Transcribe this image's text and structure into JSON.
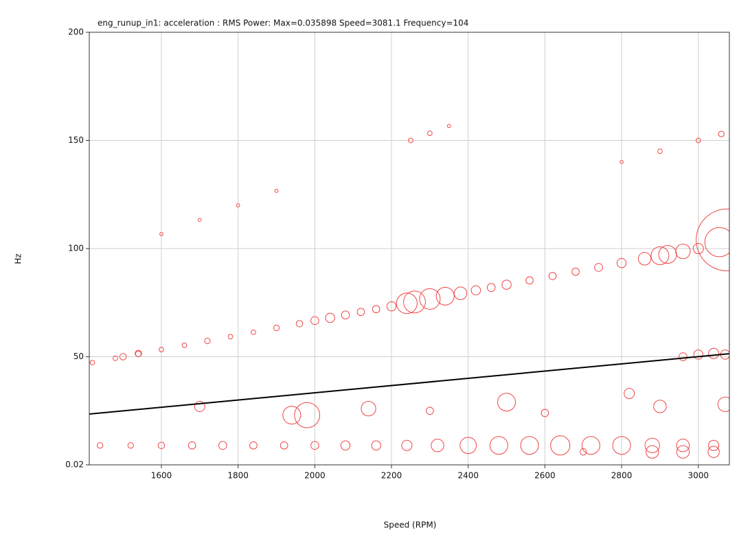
{
  "chart_data": {
    "type": "scatter",
    "title": "eng_runup_in1: acceleration : RMS Power: Max=0.035898  Speed=3081.1  Frequency=104",
    "xlabel": "Speed (RPM)",
    "ylabel": "Hz",
    "xlim": [
      1412,
      3081
    ],
    "xticks": [
      1600,
      1800,
      2000,
      2200,
      2400,
      2600,
      2800,
      3000
    ],
    "ylim": [
      0.02,
      200
    ],
    "yticks": [
      0.02,
      50,
      100,
      150,
      200
    ],
    "grid": true,
    "series": [
      {
        "mode": "bubble",
        "color": "#f04545",
        "x": [
          1420,
          1480,
          1540,
          1600,
          1660,
          1720,
          1780,
          1840,
          1900,
          1960,
          2000,
          2040,
          2080,
          2120,
          2160,
          2200,
          2240,
          2260,
          2300,
          2340,
          2380,
          2420,
          2460,
          2500,
          2560,
          2620,
          2680,
          2740,
          2800,
          2860,
          2900,
          2920,
          2960,
          3000,
          3075,
          3055,
          2960,
          3000,
          3040,
          3070,
          1500,
          1540,
          1700,
          1980,
          1940,
          2140,
          2500,
          2820,
          2900,
          3070,
          2600,
          2300,
          1440,
          1520,
          1600,
          1680,
          1760,
          1840,
          1920,
          2000,
          2080,
          2160,
          2240,
          2320,
          2400,
          2480,
          2560,
          2640,
          2720,
          2800,
          2880,
          2960,
          3040,
          2880,
          2960,
          3040,
          2700,
          1600,
          1700,
          1800,
          1900,
          2250,
          2300,
          2350,
          2800,
          2900,
          3000,
          3060
        ],
        "y": [
          47.3,
          49.3,
          51.3,
          53.3,
          55.3,
          57.3,
          59.3,
          61.3,
          63.3,
          65.3,
          66.7,
          68,
          69.3,
          70.7,
          72,
          73.3,
          74.7,
          75.3,
          76.7,
          78,
          79.3,
          80.7,
          82,
          83.3,
          85.3,
          87.3,
          89.3,
          91.3,
          93.3,
          95.3,
          96.7,
          97.3,
          98.7,
          100,
          104,
          103,
          50,
          51,
          51.5,
          51,
          50,
          51.5,
          27,
          23,
          23,
          26,
          29,
          33,
          27,
          28,
          24,
          25,
          9,
          9,
          9,
          9,
          9,
          9,
          9,
          9,
          9,
          9,
          9,
          9,
          9,
          9,
          9,
          9,
          9,
          9,
          9,
          9,
          9,
          6,
          6,
          6,
          6,
          106.7,
          113.3,
          120,
          126.7,
          150,
          153.3,
          156.7,
          140,
          145,
          150,
          153
        ],
        "size": [
          0.0002,
          0.0002,
          0.0003,
          0.0002,
          0.0002,
          0.0003,
          0.0002,
          0.0002,
          0.0003,
          0.0004,
          0.0006,
          0.0008,
          0.0006,
          0.0005,
          0.0005,
          0.0008,
          0.004,
          0.0045,
          0.004,
          0.003,
          0.0015,
          0.0008,
          0.0006,
          0.0008,
          0.0005,
          0.0005,
          0.0005,
          0.0006,
          0.0008,
          0.0015,
          0.003,
          0.003,
          0.002,
          0.001,
          0.0359,
          0.008,
          0.0006,
          0.0008,
          0.001,
          0.0008,
          0.0004,
          0.0004,
          0.001,
          0.006,
          0.003,
          0.002,
          0.003,
          0.001,
          0.0015,
          0.002,
          0.0005,
          0.0005,
          0.0003,
          0.0003,
          0.0004,
          0.0005,
          0.0006,
          0.0005,
          0.0005,
          0.0006,
          0.0008,
          0.0008,
          0.001,
          0.0015,
          0.0025,
          0.003,
          0.003,
          0.0035,
          0.003,
          0.003,
          0.002,
          0.0015,
          0.001,
          0.0015,
          0.0015,
          0.0012,
          0.0004,
          0.0001,
          0.0001,
          0.0001,
          0.0001,
          0.0002,
          0.0002,
          0.0001,
          0.0001,
          0.0002,
          0.0002,
          0.0003
        ]
      },
      {
        "mode": "line",
        "color": "#000000",
        "x": [
          1412,
          3081
        ],
        "y": [
          23.5,
          51.4
        ]
      }
    ]
  }
}
